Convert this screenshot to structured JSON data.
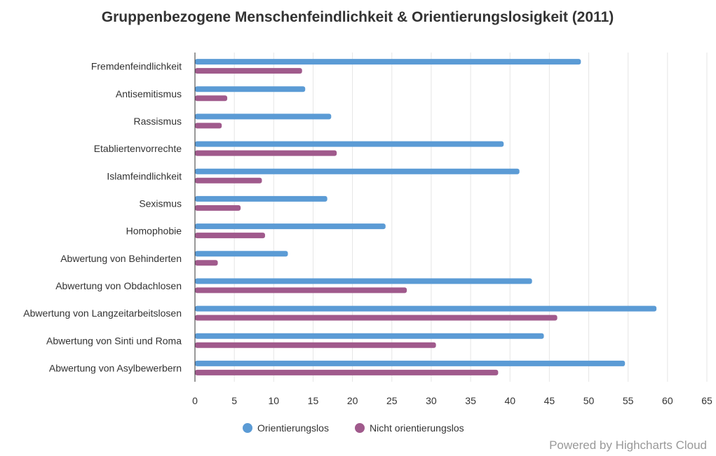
{
  "chart_data": {
    "type": "bar",
    "orientation": "horizontal",
    "title": "Gruppenbezogene Menschenfeindlichkeit & Orientierungslosigkeit (2011)",
    "categories": [
      "Fremdenfeindlichkeit",
      "Antisemitismus",
      "Rassismus",
      "Etabliertenvorrechte",
      "Islamfeindlichkeit",
      "Sexismus",
      "Homophobie",
      "Abwertung von Behinderten",
      "Abwertung von Obdachlosen",
      "Abwertung von Langzeitarbeitslosen",
      "Abwertung von Sinti und Roma",
      "Abwertung von Asylbewerbern"
    ],
    "series": [
      {
        "name": "Orientierungslos",
        "color": "#5b9bd5",
        "values": [
          49,
          14,
          17.3,
          39.2,
          41.2,
          16.8,
          24.2,
          11.8,
          42.8,
          58.6,
          44.3,
          54.6
        ]
      },
      {
        "name": "Nicht orientierungslos",
        "color": "#a05a8c",
        "values": [
          13.6,
          4.1,
          3.4,
          18,
          8.5,
          5.8,
          8.9,
          2.9,
          26.9,
          46,
          30.6,
          38.5
        ]
      }
    ],
    "xlim": [
      0,
      65
    ],
    "xticks": [
      0,
      5,
      10,
      15,
      20,
      25,
      30,
      35,
      40,
      45,
      50,
      55,
      60,
      65
    ],
    "xlabel": "",
    "ylabel": "",
    "grid": true,
    "legend_position": "bottom-center"
  },
  "credits": "Powered by Highcharts Cloud"
}
